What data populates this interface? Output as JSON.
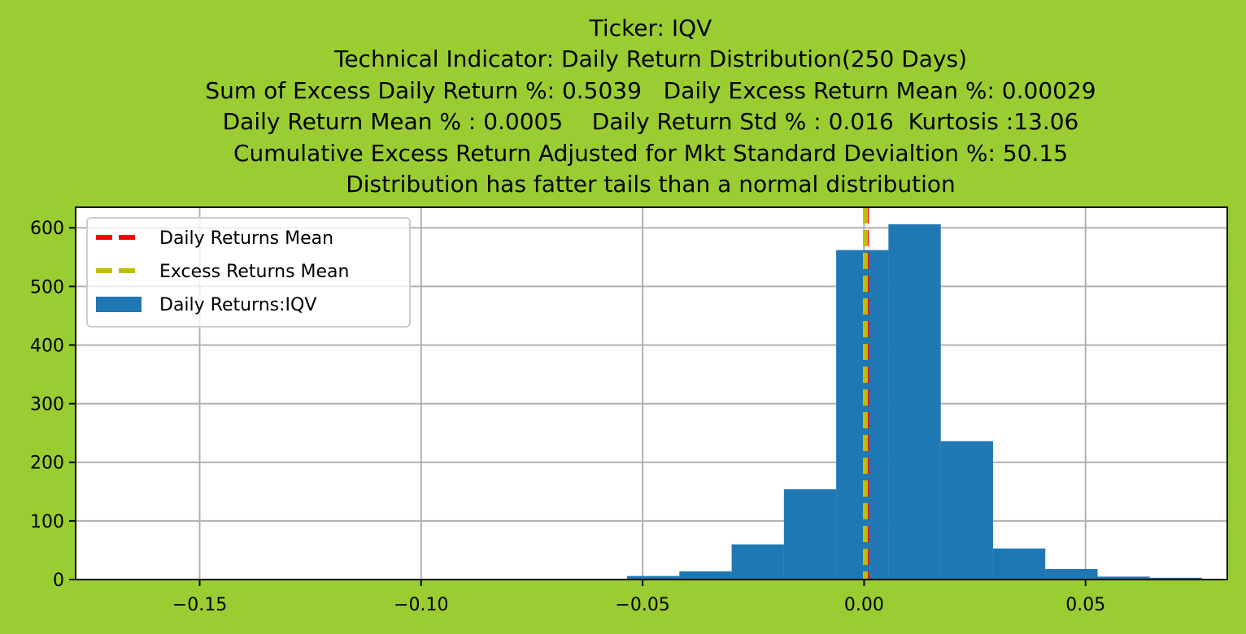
{
  "chart_data": {
    "type": "bar",
    "title_lines": [
      "Ticker: IQV",
      "Technical Indicator: Daily Return Distribution(250 Days)",
      "Sum of Excess Daily Return %: 0.5039   Daily Excess Return Mean %: 0.00029",
      "Daily Return Mean % : 0.0005    Daily Return Std % : 0.016  Kurtosis :13.06",
      "Cumulative Excess Return Adjusted for Mkt Standard Devialtion %: 50.15",
      "Distribution has fatter tails than a normal distribution"
    ],
    "xlim": [
      -0.178,
      0.082
    ],
    "ylim": [
      0,
      635
    ],
    "x_ticks": [
      -0.15,
      -0.1,
      -0.05,
      0.0,
      0.05
    ],
    "x_tick_labels": [
      "−0.15",
      "−0.10",
      "−0.05",
      "0.00",
      "0.05"
    ],
    "y_ticks": [
      0,
      100,
      200,
      300,
      400,
      500,
      600
    ],
    "y_tick_labels": [
      "0",
      "100",
      "200",
      "300",
      "400",
      "500",
      "600"
    ],
    "grid": true,
    "series": [
      {
        "name": "Daily Returns:IQV",
        "kind": "histogram",
        "color": "#1f77b4",
        "bin_width": 0.01181,
        "bins": [
          {
            "x0": -0.1716,
            "count": 0
          },
          {
            "x0": -0.1598,
            "count": 0
          },
          {
            "x0": -0.148,
            "count": 0
          },
          {
            "x0": -0.1362,
            "count": 0
          },
          {
            "x0": -0.1244,
            "count": 0
          },
          {
            "x0": -0.1126,
            "count": 0
          },
          {
            "x0": -0.1008,
            "count": 0
          },
          {
            "x0": -0.089,
            "count": 1
          },
          {
            "x0": -0.0771,
            "count": 0
          },
          {
            "x0": -0.0653,
            "count": 1
          },
          {
            "x0": -0.0535,
            "count": 6
          },
          {
            "x0": -0.0417,
            "count": 14
          },
          {
            "x0": -0.0299,
            "count": 60
          },
          {
            "x0": -0.0181,
            "count": 154
          },
          {
            "x0": -0.0063,
            "count": 562
          },
          {
            "x0": 0.0055,
            "count": 606
          },
          {
            "x0": 0.0173,
            "count": 236
          },
          {
            "x0": 0.0291,
            "count": 53
          },
          {
            "x0": 0.0409,
            "count": 18
          },
          {
            "x0": 0.0527,
            "count": 5
          },
          {
            "x0": 0.0645,
            "count": 3
          }
        ]
      },
      {
        "name": "Daily Returns Mean",
        "kind": "vline",
        "x": 0.0005,
        "color": "#ff0000",
        "style": "dashed"
      },
      {
        "name": "Excess Returns Mean",
        "kind": "vline",
        "x": 0.00029,
        "color": "#bfbf00",
        "style": "dashed"
      }
    ],
    "legend": {
      "placement": "top-left",
      "entries": [
        "Daily Returns Mean",
        "Excess Returns Mean",
        "Daily Returns:IQV"
      ]
    }
  }
}
